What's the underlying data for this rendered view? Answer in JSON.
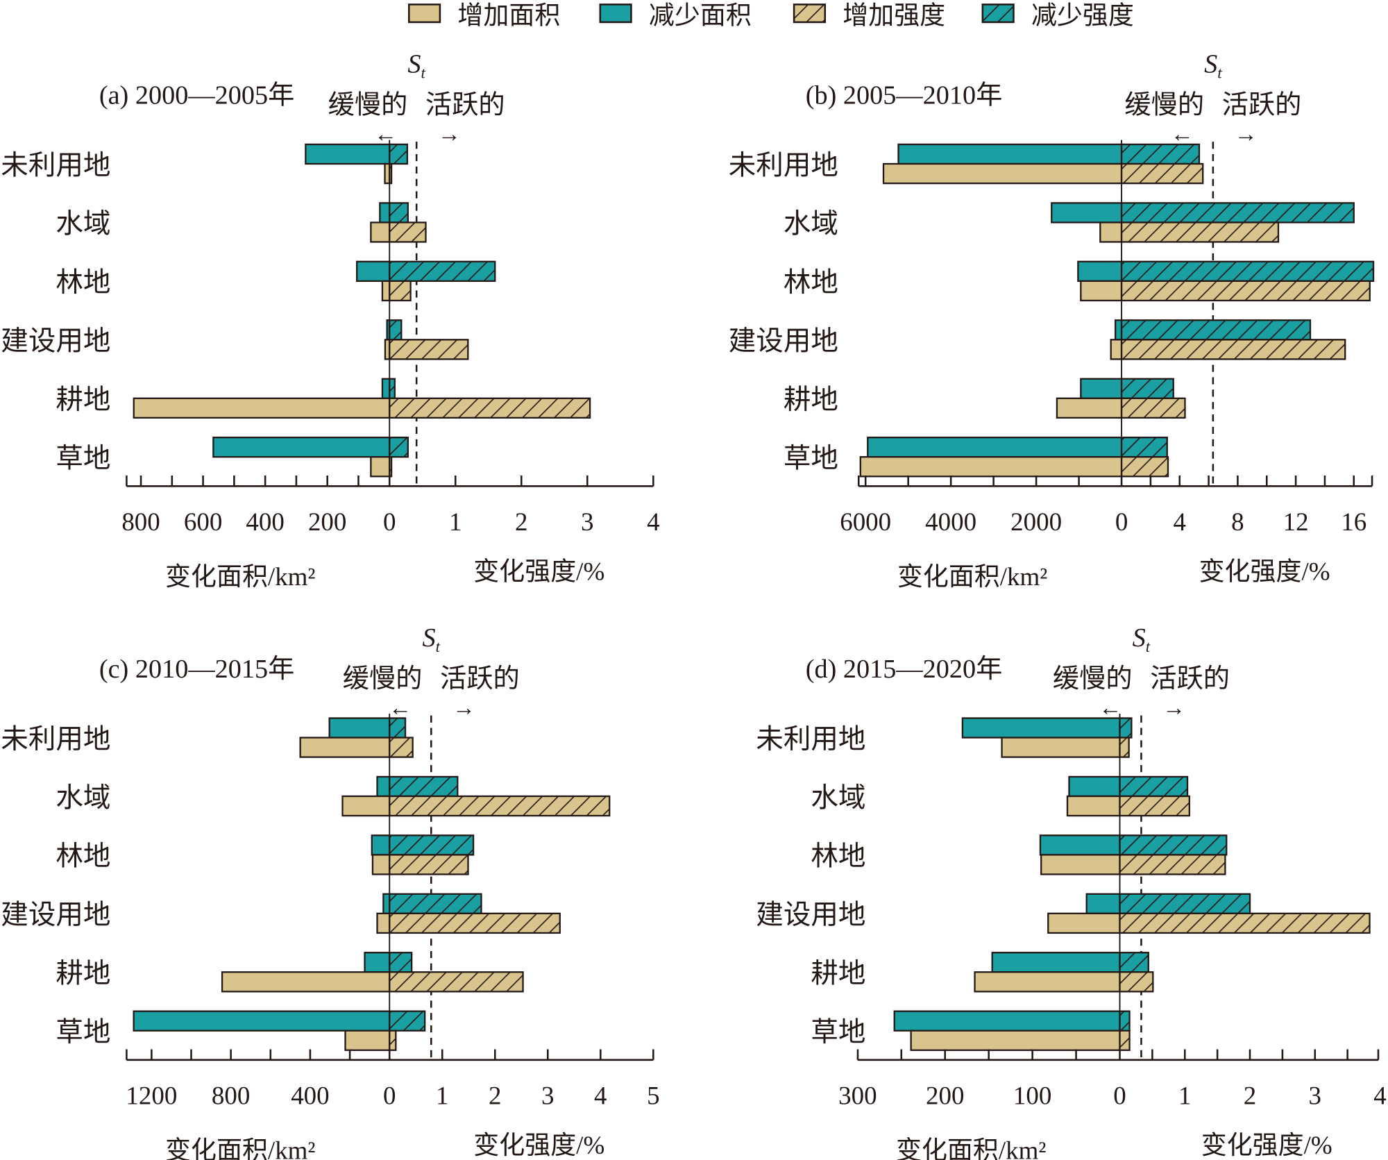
{
  "colors": {
    "increase": "#d8c48c",
    "decrease": "#1a9fa3",
    "outline": "#231815"
  },
  "legend": [
    {
      "label": "增加面积",
      "color": "#d8c48c",
      "hatched": false
    },
    {
      "label": "减少面积",
      "color": "#1a9fa3",
      "hatched": false
    },
    {
      "label": "增加强度",
      "color": "#d8c48c",
      "hatched": true
    },
    {
      "label": "减少强度",
      "color": "#1a9fa3",
      "hatched": true
    }
  ],
  "chart_data": [
    {
      "type": "bar",
      "title": "(a) 2000—2005年",
      "categories": [
        "未利用地",
        "水域",
        "林地",
        "建设用地",
        "耕地",
        "草地"
      ],
      "xlabel_left": "变化面积/km²",
      "xlabel_right": "变化强度/%",
      "area_ticks": [
        800,
        600,
        400,
        200,
        0
      ],
      "area_ticks_labels": [
        "800",
        "600",
        "400",
        "200",
        "0"
      ],
      "intensity_ticks": [
        1,
        2,
        3,
        4
      ],
      "intensity_ticks_labels": [
        "1",
        "2",
        "3",
        "4"
      ],
      "threshold": {
        "label": "St",
        "value": 0.41,
        "left_label": "缓慢的",
        "right_label": "活跃的"
      },
      "series": [
        {
          "name": "减少面积",
          "values": [
            270,
            31,
            105,
            8,
            23,
            567
          ]
        },
        {
          "name": "增加面积",
          "values": [
            15,
            60,
            23,
            14,
            823,
            60
          ]
        },
        {
          "name": "减少强度",
          "values": [
            0.27,
            0.28,
            1.6,
            0.18,
            0.08,
            0.28
          ]
        },
        {
          "name": "增加强度",
          "values": [
            0.03,
            0.55,
            0.32,
            1.19,
            3.04,
            0.03
          ]
        }
      ]
    },
    {
      "type": "bar",
      "title": "(b) 2005—2010年",
      "categories": [
        "未利用地",
        "水域",
        "林地",
        "建设用地",
        "耕地",
        "草地"
      ],
      "xlabel_left": "变化面积/km²",
      "xlabel_right": "变化强度/%",
      "area_ticks": [
        6000,
        4000,
        2000,
        0
      ],
      "area_ticks_labels": [
        "6000",
        "4000",
        "2000",
        "0"
      ],
      "intensity_ticks": [
        4,
        8,
        12,
        16
      ],
      "intensity_ticks_labels": [
        "4",
        "8",
        "12",
        "16"
      ],
      "threshold": {
        "label": "St",
        "value": 6.3,
        "left_label": "缓慢的",
        "right_label": "活跃的"
      },
      "series": [
        {
          "name": "减少面积",
          "values": [
            5230,
            1640,
            1020,
            145,
            955,
            5950
          ]
        },
        {
          "name": "增加面积",
          "values": [
            5580,
            500,
            955,
            250,
            1515,
            6120
          ]
        },
        {
          "name": "减少强度",
          "values": [
            5.35,
            16.0,
            17.35,
            13.0,
            3.57,
            3.14
          ]
        },
        {
          "name": "增加强度",
          "values": [
            5.6,
            10.8,
            17.1,
            15.4,
            4.37,
            3.2
          ]
        }
      ]
    },
    {
      "type": "bar",
      "title": "(c) 2010—2015年",
      "categories": [
        "未利用地",
        "水域",
        "林地",
        "建设用地",
        "耕地",
        "草地"
      ],
      "xlabel_left": "变化面积/km²",
      "xlabel_right": "变化强度/%",
      "area_ticks": [
        1200,
        800,
        400,
        0
      ],
      "area_ticks_labels": [
        "1200",
        "800",
        "400",
        "0"
      ],
      "intensity_ticks": [
        1,
        2,
        3,
        4,
        5
      ],
      "intensity_ticks_labels": [
        "1",
        "2",
        "3",
        "4",
        "5"
      ],
      "threshold": {
        "label": "St",
        "value": 0.79,
        "left_label": "缓慢的",
        "right_label": "活跃的"
      },
      "series": [
        {
          "name": "减少面积",
          "values": [
            303,
            62,
            89,
            31,
            125,
            1290
          ]
        },
        {
          "name": "增加面积",
          "values": [
            450,
            237,
            85,
            62,
            844,
            223
          ]
        },
        {
          "name": "减少强度",
          "values": [
            0.3,
            1.29,
            1.59,
            1.74,
            0.42,
            0.67
          ]
        },
        {
          "name": "增加强度",
          "values": [
            0.44,
            4.17,
            1.49,
            3.23,
            2.53,
            0.12
          ]
        }
      ]
    },
    {
      "type": "bar",
      "title": "(d) 2015—2020年",
      "categories": [
        "未利用地",
        "水域",
        "林地",
        "建设用地",
        "耕地",
        "草地"
      ],
      "xlabel_left": "变化面积/km²",
      "xlabel_right": "变化强度/%",
      "area_ticks": [
        300,
        200,
        100,
        0
      ],
      "area_ticks_labels": [
        "300",
        "200",
        "100",
        "0"
      ],
      "intensity_ticks": [
        1,
        2,
        3,
        4
      ],
      "intensity_ticks_labels": [
        "1",
        "2",
        "3",
        "4"
      ],
      "threshold": {
        "label": "St",
        "value": 0.33,
        "left_label": "缓慢的",
        "right_label": "活跃的"
      },
      "series": [
        {
          "name": "减少面积",
          "values": [
            180,
            58,
            91,
            38,
            146,
            258
          ]
        },
        {
          "name": "增加面积",
          "values": [
            135,
            60,
            90,
            82,
            166,
            239
          ]
        },
        {
          "name": "减少强度",
          "values": [
            0.18,
            1.04,
            1.64,
            2.0,
            0.44,
            0.15
          ]
        },
        {
          "name": "增加强度",
          "values": [
            0.14,
            1.07,
            1.62,
            3.84,
            0.51,
            0.15
          ]
        }
      ]
    }
  ]
}
